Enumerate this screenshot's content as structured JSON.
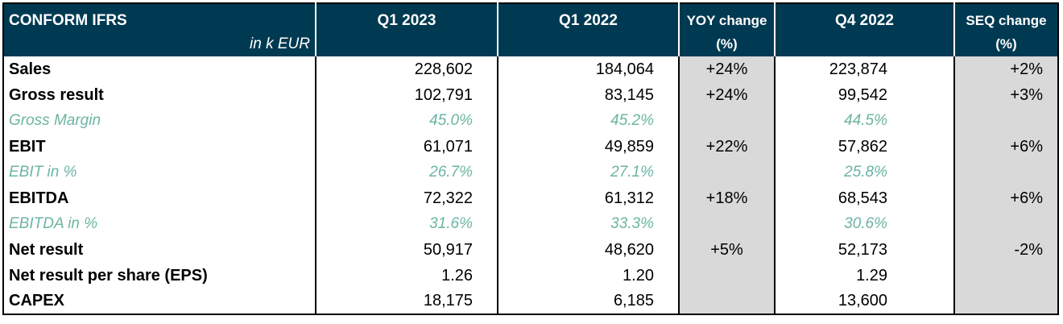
{
  "header": {
    "title": "CONFORM IFRS",
    "unit": "in k EUR",
    "col1": "Q1 2023",
    "col2": "Q1 2022",
    "col3_line1": "YOY change",
    "col3_line2": "(%)",
    "col4": "Q4 2022",
    "col5_line1": "SEQ change",
    "col5_line2": "(%)"
  },
  "rows": [
    {
      "label": "Sales",
      "q1_2023": "228,602",
      "q1_2022": "184,064",
      "yoy": "+24%",
      "q4_2022": "223,874",
      "seq": "+2%"
    },
    {
      "label": "Gross result",
      "q1_2023": "102,791",
      "q1_2022": "83,145",
      "yoy": "+24%",
      "q4_2022": "99,542",
      "seq": "+3%"
    },
    {
      "label": "Gross Margin",
      "q1_2023": "45.0%",
      "q1_2022": "45.2%",
      "yoy": "",
      "q4_2022": "44.5%",
      "seq": ""
    },
    {
      "label": "EBIT",
      "q1_2023": "61,071",
      "q1_2022": "49,859",
      "yoy": "+22%",
      "q4_2022": "57,862",
      "seq": "+6%"
    },
    {
      "label": "EBIT in %",
      "q1_2023": "26.7%",
      "q1_2022": "27.1%",
      "yoy": "",
      "q4_2022": "25.8%",
      "seq": ""
    },
    {
      "label": "EBITDA",
      "q1_2023": "72,322",
      "q1_2022": "61,312",
      "yoy": "+18%",
      "q4_2022": "68,543",
      "seq": "+6%"
    },
    {
      "label": "EBITDA in %",
      "q1_2023": "31.6%",
      "q1_2022": "33.3%",
      "yoy": "",
      "q4_2022": "30.6%",
      "seq": ""
    },
    {
      "label": "Net result",
      "q1_2023": "50,917",
      "q1_2022": "48,620",
      "yoy": "+5%",
      "q4_2022": "52,173",
      "seq": "-2%"
    },
    {
      "label": "Net result per share (EPS)",
      "q1_2023": "1.26",
      "q1_2022": "1.20",
      "yoy": "",
      "q4_2022": "1.29",
      "seq": ""
    },
    {
      "label": "CAPEX",
      "q1_2023": "18,175",
      "q1_2022": "6,185",
      "yoy": "",
      "q4_2022": "13,600",
      "seq": ""
    }
  ],
  "colors": {
    "header_bg": "#003a52",
    "change_col_bg": "#d9d9d9",
    "ratio_text": "#6cb5a2"
  }
}
